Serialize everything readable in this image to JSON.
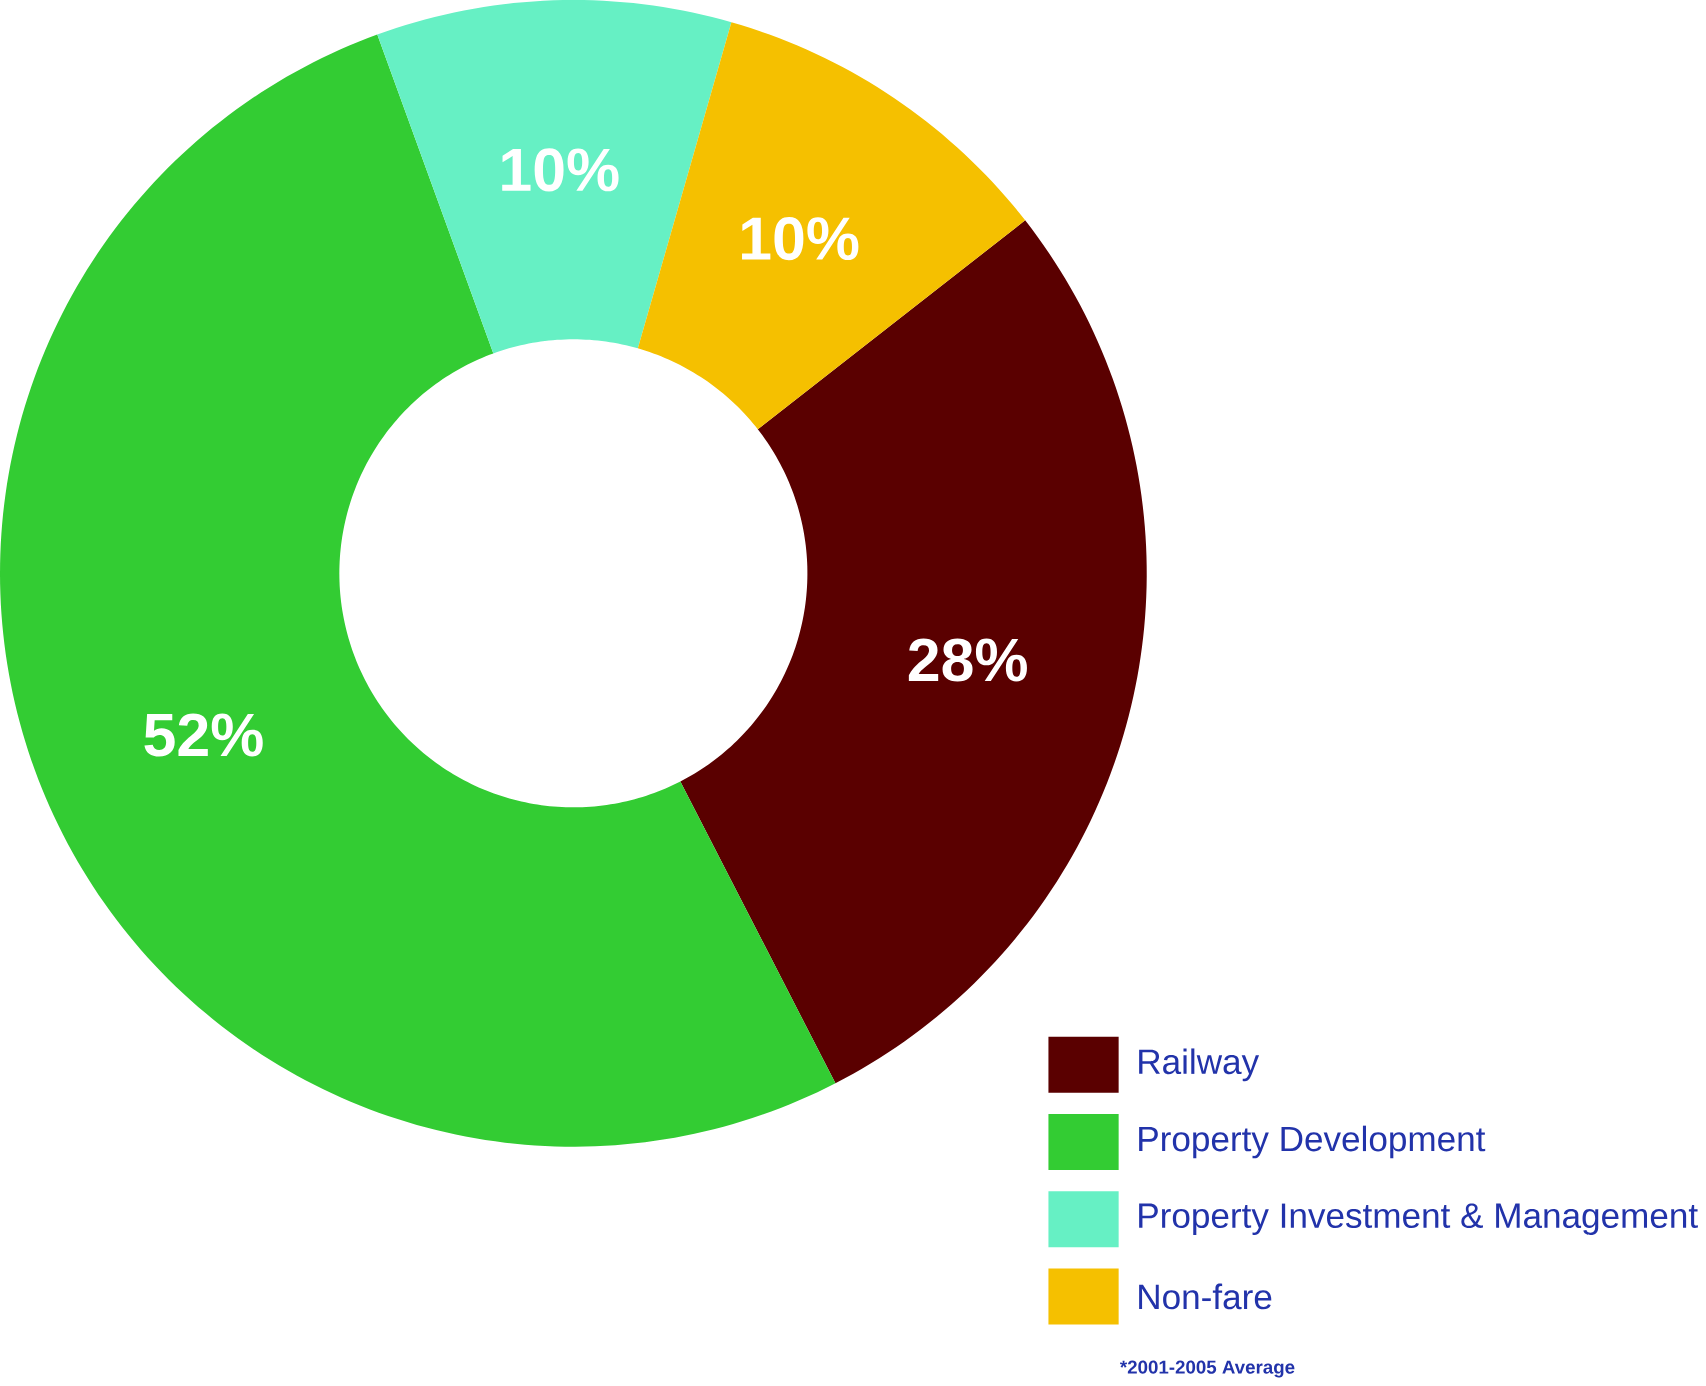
{
  "chart_data": {
    "type": "donut",
    "categories": [
      "Railway",
      "Property Development",
      "Property Investment & Management",
      "Non-fare"
    ],
    "values": [
      28,
      52,
      10,
      10
    ],
    "colors": [
      "#5a0000",
      "#33cc33",
      "#66f0c4",
      "#f5c000"
    ],
    "value_labels": [
      "28%",
      "52%",
      "10%",
      "10%"
    ],
    "legend": "bottom right",
    "annotations": [
      "*2001-2005 Average"
    ]
  }
}
